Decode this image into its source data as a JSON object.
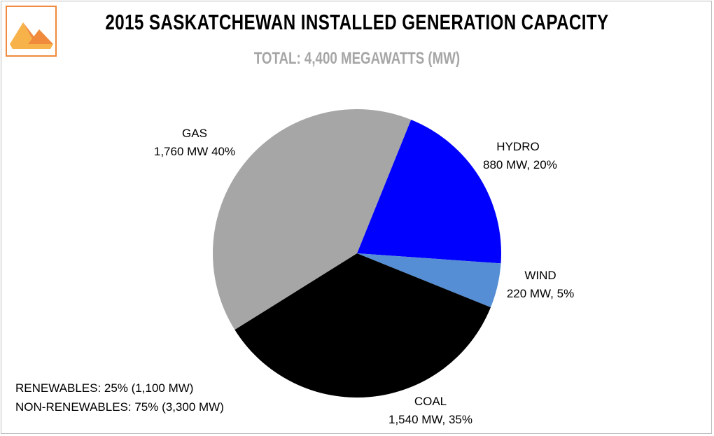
{
  "chart_data": {
    "type": "pie",
    "title": "2015 SASKATCHEWAN INSTALLED GENERATION CAPACITY",
    "subtitle": "TOTAL:  4,400 MEGAWATTS (MW)",
    "slices": [
      {
        "name": "HYDRO",
        "value": 880,
        "percent": 20,
        "color": "#0000ff",
        "label_line1": "HYDRO",
        "label_line2": "880 MW, 20%"
      },
      {
        "name": "WIND",
        "value": 220,
        "percent": 5,
        "color": "#558ed5",
        "label_line1": "WIND",
        "label_line2": "220 MW, 5%"
      },
      {
        "name": "COAL",
        "value": 1540,
        "percent": 35,
        "color": "#000000",
        "label_line1": "COAL",
        "label_line2": "1,540 MW, 35%"
      },
      {
        "name": "GAS",
        "value": 1760,
        "percent": 40,
        "color": "#a6a6a6",
        "label_line1": "GAS",
        "label_line2": "1,760 MW  40%"
      }
    ],
    "start_angle_deg": 22,
    "direction": "clockwise",
    "legend": "none"
  },
  "notes": {
    "renewables": "RENEWABLES: 25% (1,100 MW)",
    "non_renewables": "NON-RENEWABLES: 75% (3,300 MW)"
  },
  "colors": {
    "logo_orange": "#f08a3c",
    "logo_light": "#f7b24a",
    "subtitle_gray": "#a6a6a6"
  },
  "icons": {
    "logo": "triangle-logo-icon"
  }
}
